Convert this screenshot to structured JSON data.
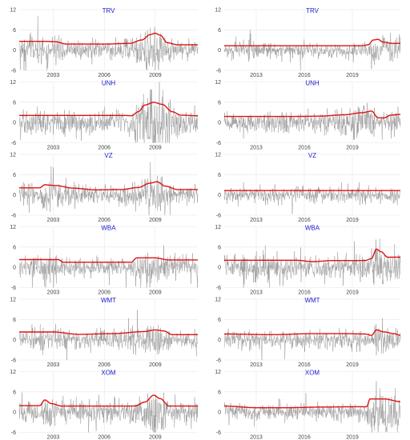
{
  "chart_data": [
    {
      "type": "line",
      "title": "TRV",
      "period": "2001-2011",
      "xticks": [
        "2003",
        "2006",
        "2009"
      ],
      "yticks": [
        "12",
        "6",
        "0",
        "-6"
      ],
      "ylim": [
        -6,
        12
      ],
      "volatility": [
        [
          2001,
          2.6
        ],
        [
          2002.5,
          2.6
        ],
        [
          2003.1,
          2.5
        ],
        [
          2003.8,
          1.8
        ],
        [
          2006,
          1.8
        ],
        [
          2007.5,
          2.0
        ],
        [
          2008.2,
          3.0
        ],
        [
          2008.7,
          4.6
        ],
        [
          2009.0,
          5.0
        ],
        [
          2009.3,
          4.4
        ],
        [
          2009.7,
          2.2
        ],
        [
          2010.3,
          1.6
        ],
        [
          2011.5,
          1.6
        ]
      ]
    },
    {
      "type": "line",
      "title": "TRV",
      "period": "2011-2022",
      "xticks": [
        "2013",
        "2016",
        "2019"
      ],
      "yticks": [
        "12",
        "6",
        "0",
        "-6"
      ],
      "ylim": [
        -6,
        12
      ],
      "volatility": [
        [
          2011,
          1.3
        ],
        [
          2019.6,
          1.3
        ],
        [
          2020.0,
          1.6
        ],
        [
          2020.3,
          3.0
        ],
        [
          2020.6,
          3.2
        ],
        [
          2020.9,
          2.4
        ],
        [
          2021.5,
          2.0
        ],
        [
          2022,
          2.0
        ]
      ]
    },
    {
      "type": "line",
      "title": "UNH",
      "period": "2001-2011",
      "xticks": [
        "2003",
        "2006",
        "2009"
      ],
      "yticks": [
        "12",
        "6",
        "0",
        "-6"
      ],
      "ylim": [
        -6,
        12
      ],
      "volatility": [
        [
          2001,
          2.1
        ],
        [
          2007.2,
          2.1
        ],
        [
          2007.6,
          2.0
        ],
        [
          2008.0,
          3.2
        ],
        [
          2008.4,
          5.2
        ],
        [
          2008.9,
          6.0
        ],
        [
          2009.4,
          5.4
        ],
        [
          2010.0,
          3.2
        ],
        [
          2010.5,
          2.2
        ],
        [
          2011.5,
          2.0
        ]
      ]
    },
    {
      "type": "line",
      "title": "UNH",
      "period": "2011-2022",
      "xticks": [
        "2013",
        "2016",
        "2019"
      ],
      "yticks": [
        "12",
        "6",
        "0",
        "-6"
      ],
      "ylim": [
        -6,
        12
      ],
      "volatility": [
        [
          2011,
          1.8
        ],
        [
          2015.5,
          1.8
        ],
        [
          2017.0,
          1.9
        ],
        [
          2018.5,
          2.3
        ],
        [
          2019.6,
          2.9
        ],
        [
          2020.2,
          3.4
        ],
        [
          2020.6,
          1.4
        ],
        [
          2021.0,
          1.4
        ],
        [
          2021.4,
          2.2
        ],
        [
          2022,
          2.4
        ]
      ]
    },
    {
      "type": "line",
      "title": "VZ",
      "period": "2001-2011",
      "xticks": [
        "2003",
        "2006",
        "2009"
      ],
      "yticks": [
        "12",
        "6",
        "0",
        "-6"
      ],
      "ylim": [
        -6,
        12
      ],
      "volatility": [
        [
          2001,
          2.1
        ],
        [
          2002.2,
          2.1
        ],
        [
          2002.5,
          3.0
        ],
        [
          2003.1,
          2.8
        ],
        [
          2004.2,
          2.0
        ],
        [
          2005.5,
          1.5
        ],
        [
          2007.0,
          1.6
        ],
        [
          2008.0,
          2.2
        ],
        [
          2008.7,
          3.5
        ],
        [
          2009.1,
          3.9
        ],
        [
          2009.6,
          2.6
        ],
        [
          2010.3,
          1.6
        ],
        [
          2011.5,
          1.6
        ]
      ]
    },
    {
      "type": "line",
      "title": "VZ",
      "period": "2011-2022",
      "xticks": [
        "2013",
        "2016",
        "2019"
      ],
      "yticks": [
        "12",
        "6",
        "0",
        "-6"
      ],
      "ylim": [
        -6,
        12
      ],
      "volatility": [
        [
          2011,
          1.3
        ],
        [
          2022,
          1.3
        ]
      ]
    },
    {
      "type": "line",
      "title": "WBA",
      "period": "2001-2011",
      "xticks": [
        "2003",
        "2006",
        "2009"
      ],
      "yticks": [
        "12",
        "6",
        "0",
        "-6"
      ],
      "ylim": [
        -6,
        12
      ],
      "volatility": [
        [
          2001,
          2.3
        ],
        [
          2003.3,
          2.3
        ],
        [
          2003.6,
          1.5
        ],
        [
          2007.6,
          1.5
        ],
        [
          2007.9,
          2.8
        ],
        [
          2009.0,
          2.8
        ],
        [
          2009.8,
          2.2
        ],
        [
          2011.5,
          2.2
        ]
      ]
    },
    {
      "type": "line",
      "title": "WBA",
      "period": "2011-2022",
      "xticks": [
        "2013",
        "2016",
        "2019"
      ],
      "yticks": [
        "12",
        "6",
        "0",
        "-6"
      ],
      "ylim": [
        -6,
        12
      ],
      "volatility": [
        [
          2011,
          2.1
        ],
        [
          2015.5,
          2.1
        ],
        [
          2016.5,
          1.7
        ],
        [
          2017.8,
          2.0
        ],
        [
          2019.8,
          2.0
        ],
        [
          2020.2,
          2.6
        ],
        [
          2020.5,
          5.4
        ],
        [
          2020.8,
          4.6
        ],
        [
          2021.2,
          3.0
        ],
        [
          2022,
          3.0
        ]
      ]
    },
    {
      "type": "line",
      "title": "WMT",
      "period": "2001-2011",
      "xticks": [
        "2003",
        "2006",
        "2009"
      ],
      "yticks": [
        "12",
        "6",
        "0",
        "-6"
      ],
      "ylim": [
        -6,
        12
      ],
      "volatility": [
        [
          2001,
          2.3
        ],
        [
          2003.0,
          2.3
        ],
        [
          2004.5,
          1.6
        ],
        [
          2006.5,
          1.8
        ],
        [
          2008.3,
          2.4
        ],
        [
          2009.0,
          2.9
        ],
        [
          2009.5,
          2.6
        ],
        [
          2010.0,
          1.5
        ],
        [
          2011.5,
          1.5
        ]
      ]
    },
    {
      "type": "line",
      "title": "WMT",
      "period": "2011-2022",
      "xticks": [
        "2013",
        "2016",
        "2019"
      ],
      "yticks": [
        "12",
        "6",
        "0",
        "-6"
      ],
      "ylim": [
        -6,
        12
      ],
      "volatility": [
        [
          2011,
          1.7
        ],
        [
          2014.0,
          1.5
        ],
        [
          2016.5,
          1.8
        ],
        [
          2018.5,
          1.8
        ],
        [
          2019.8,
          1.7
        ],
        [
          2020.2,
          1.3
        ],
        [
          2020.5,
          2.9
        ],
        [
          2021.0,
          2.3
        ],
        [
          2021.6,
          1.8
        ],
        [
          2022,
          1.3
        ]
      ]
    },
    {
      "type": "line",
      "title": "XOM",
      "period": "2001-2011",
      "xticks": [
        "2003",
        "2006",
        "2009"
      ],
      "yticks": [
        "12",
        "6",
        "0",
        "-6"
      ],
      "ylim": [
        -6,
        12
      ],
      "volatility": [
        [
          2001,
          1.9
        ],
        [
          2002.2,
          1.9
        ],
        [
          2002.5,
          3.6
        ],
        [
          2002.9,
          2.5
        ],
        [
          2003.5,
          1.8
        ],
        [
          2007.8,
          1.8
        ],
        [
          2008.4,
          3.0
        ],
        [
          2008.9,
          5.0
        ],
        [
          2009.3,
          4.0
        ],
        [
          2009.8,
          1.8
        ],
        [
          2011.5,
          1.8
        ]
      ]
    },
    {
      "type": "line",
      "title": "XOM",
      "period": "2011-2022",
      "xticks": [
        "2013",
        "2016",
        "2019"
      ],
      "yticks": [
        "12",
        "6",
        "0",
        "-6"
      ],
      "ylim": [
        -6,
        12
      ],
      "volatility": [
        [
          2011,
          1.8
        ],
        [
          2013.0,
          1.3
        ],
        [
          2015.0,
          1.3
        ],
        [
          2017.0,
          1.5
        ],
        [
          2019.5,
          1.6
        ],
        [
          2019.9,
          1.6
        ],
        [
          2020.1,
          3.9
        ],
        [
          2021.0,
          3.9
        ],
        [
          2022,
          3.1
        ]
      ]
    }
  ]
}
